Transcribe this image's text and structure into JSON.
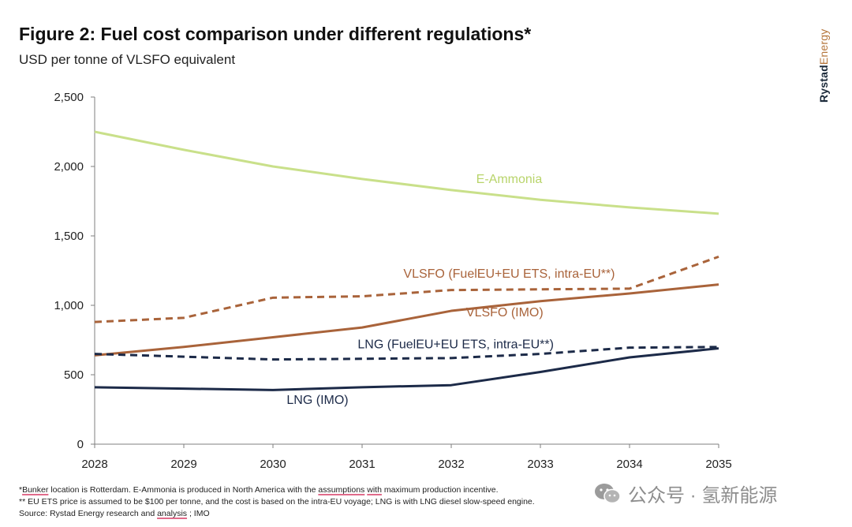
{
  "title": "Figure 2: Fuel cost comparison under different regulations*",
  "subtitle": "USD per tonne of VLSFO equivalent",
  "brand": {
    "part1": "Rystad",
    "part2": "Energy"
  },
  "chart_data": {
    "type": "line",
    "title": "Figure 2: Fuel cost comparison under different regulations*",
    "ylabel": "USD per tonne of VLSFO equivalent",
    "xlabel": "",
    "x": [
      2028,
      2029,
      2030,
      2031,
      2032,
      2033,
      2034,
      2035
    ],
    "x_tick_labels": [
      "2028",
      "2029",
      "2030",
      "2031",
      "2032",
      "2033",
      "2034",
      "2035"
    ],
    "ylim": [
      0,
      2500
    ],
    "y_ticks": [
      0,
      500,
      1000,
      1500,
      2000,
      2500
    ],
    "y_tick_labels": [
      "0",
      "500",
      "1,000",
      "1,500",
      "2,000",
      "2,500"
    ],
    "grid": false,
    "series": [
      {
        "name": "E-Ammonia",
        "color": "#c9e08a",
        "dash": false,
        "values": [
          2250,
          2120,
          2000,
          1910,
          1830,
          1760,
          1705,
          1660
        ]
      },
      {
        "name": "VLSFO (FuelEU+EU ETS, intra-EU**)",
        "color": "#a9633a",
        "dash": true,
        "values": [
          880,
          910,
          1055,
          1065,
          1110,
          1115,
          1120,
          1350
        ]
      },
      {
        "name": "VLSFO (IMO)",
        "color": "#a9633a",
        "dash": false,
        "values": [
          640,
          700,
          770,
          840,
          960,
          1030,
          1085,
          1150
        ]
      },
      {
        "name": "LNG (FuelEU+EU ETS, intra-EU**)",
        "color": "#1c2a48",
        "dash": true,
        "values": [
          650,
          630,
          610,
          615,
          620,
          650,
          695,
          700
        ]
      },
      {
        "name": "LNG (IMO)",
        "color": "#1c2a48",
        "dash": false,
        "values": [
          410,
          400,
          390,
          410,
          425,
          520,
          625,
          690
        ]
      }
    ]
  },
  "notes": {
    "line1_a": "*",
    "line1_u1": "Bunker",
    "line1_b": " location is Rotterdam. E-Ammonia is produced in North America with the ",
    "line1_u2": "assumptions",
    "line1_c": " ",
    "line1_u3": "with",
    "line1_d": " maximum production incentive.",
    "line2": "** EU ETS price is assumed to be $100 per tonne, and the cost is based on the intra-EU voyage; LNG is with LNG diesel slow-speed engine.",
    "line3_a": "Source: Rystad Energy research and ",
    "line3_u": "analysis",
    "line3_b": " ; IMO"
  },
  "watermark": {
    "text": "公众号 · 氢新能源",
    "icon": "wechat-icon"
  }
}
